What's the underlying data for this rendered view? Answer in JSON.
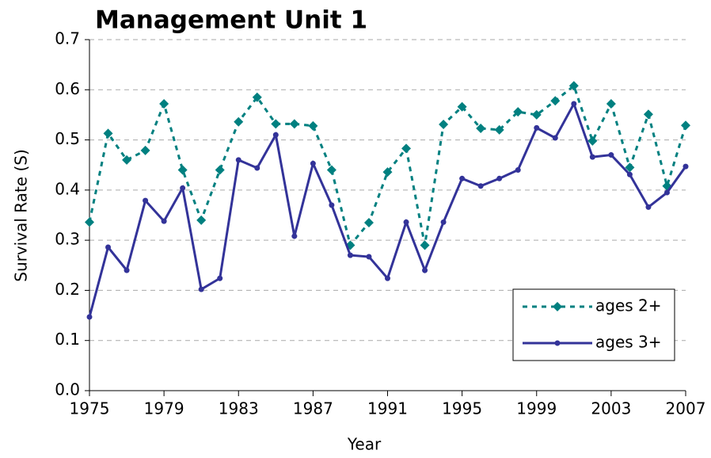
{
  "chart_data": {
    "type": "line",
    "title": "Management Unit 1",
    "x_label": "Year",
    "y_label": "Survival Rate (S)",
    "x": [
      1975,
      1976,
      1977,
      1978,
      1979,
      1980,
      1981,
      1982,
      1983,
      1984,
      1985,
      1986,
      1987,
      1988,
      1989,
      1990,
      1991,
      1992,
      1993,
      1994,
      1995,
      1996,
      1997,
      1998,
      1999,
      2000,
      2001,
      2002,
      2003,
      2004,
      2005,
      2006,
      2007
    ],
    "series": [
      {
        "name": "ages 2+",
        "color": "#008080",
        "line_style": "dashed",
        "marker": "diamond",
        "values": [
          0.336,
          0.513,
          0.46,
          0.479,
          0.572,
          0.44,
          0.34,
          0.44,
          0.536,
          0.585,
          0.532,
          0.532,
          0.528,
          0.44,
          0.29,
          0.335,
          0.436,
          0.483,
          0.29,
          0.531,
          0.566,
          0.523,
          0.52,
          0.556,
          0.55,
          0.578,
          0.608,
          0.498,
          0.572,
          0.445,
          0.551,
          0.408,
          0.529
        ]
      },
      {
        "name": "ages 3+",
        "color": "#333399",
        "line_style": "solid",
        "marker": "circle",
        "values": [
          0.147,
          0.286,
          0.24,
          0.379,
          0.338,
          0.404,
          0.202,
          0.224,
          0.46,
          0.444,
          0.51,
          0.308,
          0.453,
          0.37,
          0.27,
          0.267,
          0.224,
          0.336,
          0.24,
          0.336,
          0.423,
          0.408,
          0.423,
          0.44,
          0.524,
          0.504,
          0.572,
          0.466,
          0.47,
          0.431,
          0.366,
          0.395,
          0.447
        ]
      }
    ],
    "xlim": [
      1975,
      2007
    ],
    "xticks": [
      1975,
      1979,
      1983,
      1987,
      1991,
      1995,
      1999,
      2003,
      2007
    ],
    "ylim": [
      0,
      0.7
    ],
    "yticks": [
      {
        "value": 0,
        "label": "0.0"
      },
      0.1,
      0.2,
      0.3,
      0.4,
      0.5,
      0.6,
      0.7
    ],
    "grid": true,
    "legend": "lower right"
  }
}
